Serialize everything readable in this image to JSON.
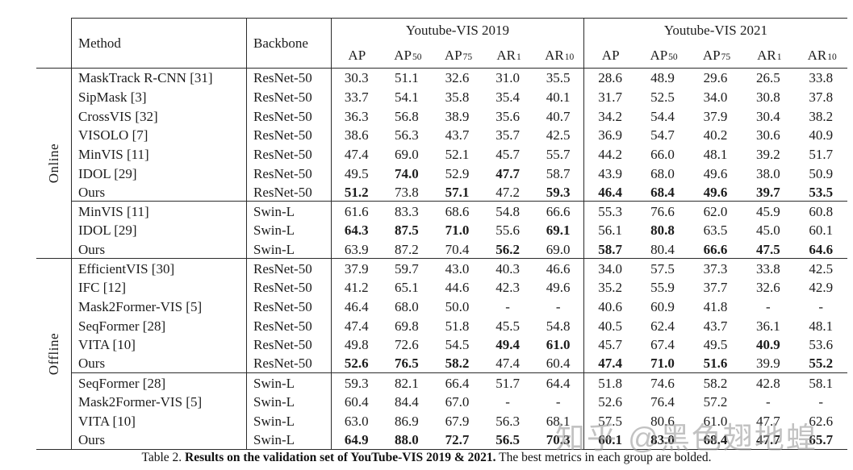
{
  "header": {
    "method": "Method",
    "backbone": "Backbone",
    "group_2019": "Youtube-VIS 2019",
    "group_2021": "Youtube-VIS 2021",
    "metrics": [
      {
        "t": "AP",
        "s": ""
      },
      {
        "t": "AP",
        "s": "50"
      },
      {
        "t": "AP",
        "s": "75"
      },
      {
        "t": "AR",
        "s": "1"
      },
      {
        "t": "AR",
        "s": "10"
      }
    ]
  },
  "groups": [
    {
      "label": "Online",
      "subgroups": [
        [
          {
            "method": "MaskTrack R-CNN [31]",
            "backbone": "ResNet-50",
            "values": [
              "30.3",
              "51.1",
              "32.6",
              "31.0",
              "35.5",
              "28.6",
              "48.9",
              "29.6",
              "26.5",
              "33.8"
            ]
          },
          {
            "method": "SipMask [3]",
            "backbone": "ResNet-50",
            "values": [
              "33.7",
              "54.1",
              "35.8",
              "35.4",
              "40.1",
              "31.7",
              "52.5",
              "34.0",
              "30.8",
              "37.8"
            ]
          },
          {
            "method": "CrossVIS [32]",
            "backbone": "ResNet-50",
            "values": [
              "36.3",
              "56.8",
              "38.9",
              "35.6",
              "40.7",
              "34.2",
              "54.4",
              "37.9",
              "30.4",
              "38.2"
            ]
          },
          {
            "method": "VISOLO [7]",
            "backbone": "ResNet-50",
            "values": [
              "38.6",
              "56.3",
              "43.7",
              "35.7",
              "42.5",
              "36.9",
              "54.7",
              "40.2",
              "30.6",
              "40.9"
            ]
          },
          {
            "method": "MinVIS [11]",
            "backbone": "ResNet-50",
            "values": [
              "47.4",
              "69.0",
              "52.1",
              "45.7",
              "55.7",
              "44.2",
              "66.0",
              "48.1",
              "39.2",
              "51.7"
            ]
          },
          {
            "method": "IDOL [29]",
            "backbone": "ResNet-50",
            "values": [
              "49.5",
              "*74.0",
              "52.9",
              "*47.7",
              "58.7",
              "43.9",
              "68.0",
              "49.6",
              "38.0",
              "50.9"
            ]
          },
          {
            "method": "Ours",
            "backbone": "ResNet-50",
            "values": [
              "*51.2",
              "73.8",
              "*57.1",
              "47.2",
              "*59.3",
              "*46.4",
              "*68.4",
              "*49.6",
              "*39.7",
              "*53.5"
            ]
          }
        ],
        [
          {
            "method": "MinVIS [11]",
            "backbone": "Swin-L",
            "values": [
              "61.6",
              "83.3",
              "68.6",
              "54.8",
              "66.6",
              "55.3",
              "76.6",
              "62.0",
              "45.9",
              "60.8"
            ]
          },
          {
            "method": "IDOL [29]",
            "backbone": "Swin-L",
            "values": [
              "*64.3",
              "*87.5",
              "*71.0",
              "55.6",
              "*69.1",
              "56.1",
              "*80.8",
              "63.5",
              "45.0",
              "60.1"
            ]
          },
          {
            "method": "Ours",
            "backbone": "Swin-L",
            "values": [
              "63.9",
              "87.2",
              "70.4",
              "*56.2",
              "69.0",
              "*58.7",
              "80.4",
              "*66.6",
              "*47.5",
              "*64.6"
            ]
          }
        ]
      ]
    },
    {
      "label": "Offline",
      "subgroups": [
        [
          {
            "method": "EfficientVIS [30]",
            "backbone": "ResNet-50",
            "values": [
              "37.9",
              "59.7",
              "43.0",
              "40.3",
              "46.6",
              "34.0",
              "57.5",
              "37.3",
              "33.8",
              "42.5"
            ]
          },
          {
            "method": "IFC [12]",
            "backbone": "ResNet-50",
            "values": [
              "41.2",
              "65.1",
              "44.6",
              "42.3",
              "49.6",
              "35.2",
              "55.9",
              "37.7",
              "32.6",
              "42.9"
            ]
          },
          {
            "method": "Mask2Former-VIS [5]",
            "backbone": "ResNet-50",
            "values": [
              "46.4",
              "68.0",
              "50.0",
              "-",
              "-",
              "40.6",
              "60.9",
              "41.8",
              "-",
              "-"
            ]
          },
          {
            "method": "SeqFormer [28]",
            "backbone": "ResNet-50",
            "values": [
              "47.4",
              "69.8",
              "51.8",
              "45.5",
              "54.8",
              "40.5",
              "62.4",
              "43.7",
              "36.1",
              "48.1"
            ]
          },
          {
            "method": "VITA [10]",
            "backbone": "ResNet-50",
            "values": [
              "49.8",
              "72.6",
              "54.5",
              "*49.4",
              "*61.0",
              "45.7",
              "67.4",
              "49.5",
              "*40.9",
              "53.6"
            ]
          },
          {
            "method": "Ours",
            "backbone": "ResNet-50",
            "values": [
              "*52.6",
              "*76.5",
              "*58.2",
              "47.4",
              "60.4",
              "*47.4",
              "*71.0",
              "*51.6",
              "39.9",
              "*55.2"
            ]
          }
        ],
        [
          {
            "method": "SeqFormer [28]",
            "backbone": "Swin-L",
            "values": [
              "59.3",
              "82.1",
              "66.4",
              "51.7",
              "64.4",
              "51.8",
              "74.6",
              "58.2",
              "42.8",
              "58.1"
            ]
          },
          {
            "method": "Mask2Former-VIS [5]",
            "backbone": "Swin-L",
            "values": [
              "60.4",
              "84.4",
              "67.0",
              "-",
              "-",
              "52.6",
              "76.4",
              "57.2",
              "-",
              "-"
            ]
          },
          {
            "method": "VITA [10]",
            "backbone": "Swin-L",
            "values": [
              "63.0",
              "86.9",
              "67.9",
              "56.3",
              "68.1",
              "57.5",
              "80.6",
              "61.0",
              "47.7",
              "62.6"
            ]
          },
          {
            "method": "Ours",
            "backbone": "Swin-L",
            "values": [
              "*64.9",
              "*88.0",
              "*72.7",
              "*56.5",
              "*70.3",
              "*60.1",
              "*83.0",
              "*68.4",
              "*47.7",
              "*65.7"
            ]
          }
        ]
      ]
    }
  ],
  "caption": {
    "prefix": "Table 2. ",
    "bold": "Results on the validation set of YouTube-VIS 2019 & 2021.",
    "suffix": " The best metrics in each group are bolded."
  },
  "watermark": "知乎 @黑色翅地蝗"
}
